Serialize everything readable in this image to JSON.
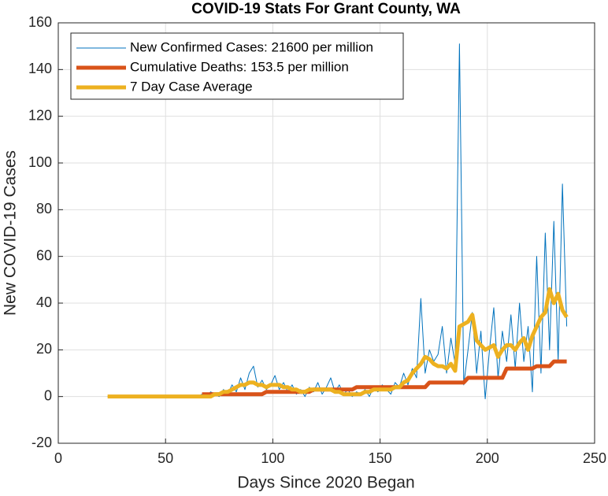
{
  "chart_data": {
    "type": "line",
    "title": "COVID-19 Stats For Grant County, WA",
    "x_label": "Days Since 2020 Began",
    "y_label": "New COVID-19 Cases",
    "x": [
      23,
      25,
      27,
      29,
      31,
      33,
      35,
      37,
      39,
      41,
      43,
      45,
      47,
      49,
      51,
      53,
      55,
      57,
      59,
      61,
      63,
      65,
      67,
      69,
      71,
      73,
      75,
      77,
      79,
      81,
      83,
      85,
      87,
      89,
      91,
      93,
      95,
      97,
      99,
      101,
      103,
      105,
      107,
      109,
      111,
      113,
      115,
      117,
      119,
      121,
      123,
      125,
      127,
      129,
      131,
      133,
      135,
      137,
      139,
      141,
      143,
      145,
      147,
      149,
      151,
      153,
      155,
      157,
      159,
      161,
      163,
      165,
      167,
      169,
      171,
      173,
      175,
      177,
      179,
      181,
      183,
      185,
      187,
      189,
      191,
      193,
      195,
      197,
      199,
      201,
      203,
      205,
      207,
      209,
      211,
      213,
      215,
      217,
      219,
      221,
      223,
      225,
      227,
      229,
      231,
      233,
      235,
      237
    ],
    "series": [
      {
        "name": "New Confirmed Cases: 21600 per million",
        "color": "#0072bd",
        "values": [
          0,
          0,
          0,
          0,
          0,
          0,
          0,
          0,
          0,
          0,
          0,
          0,
          0,
          0,
          0,
          0,
          0,
          0,
          0,
          0,
          0,
          0,
          1,
          0,
          2,
          1,
          0,
          3,
          1,
          5,
          2,
          8,
          3,
          10,
          13,
          4,
          7,
          3,
          5,
          9,
          3,
          6,
          2,
          5,
          1,
          3,
          0,
          4,
          2,
          6,
          1,
          4,
          8,
          2,
          5,
          1,
          3,
          0,
          2,
          1,
          3,
          0,
          4,
          2,
          5,
          3,
          1,
          6,
          4,
          10,
          5,
          12,
          8,
          42,
          10,
          20,
          15,
          18,
          30,
          10,
          25,
          14,
          151,
          5,
          20,
          36,
          10,
          28,
          -1,
          20,
          38,
          8,
          28,
          15,
          35,
          12,
          40,
          15,
          30,
          2,
          60,
          10,
          70,
          20,
          75,
          15,
          91,
          30
        ]
      },
      {
        "name": "Cumulative Deaths: 153.5 per million",
        "color": "#d95319",
        "values": [
          null,
          null,
          null,
          null,
          null,
          null,
          null,
          null,
          null,
          null,
          null,
          null,
          null,
          null,
          null,
          null,
          null,
          null,
          null,
          null,
          null,
          null,
          1,
          1,
          1,
          1,
          1,
          1,
          1,
          1,
          1,
          1,
          1,
          1,
          1,
          1,
          1,
          2,
          2,
          2,
          2,
          2,
          2,
          2,
          2,
          2,
          2,
          2,
          3,
          3,
          3,
          3,
          3,
          3,
          3,
          3,
          3,
          3,
          4,
          4,
          4,
          4,
          4,
          4,
          4,
          4,
          4,
          4,
          4,
          4,
          4,
          4,
          4,
          4,
          4,
          6,
          6,
          6,
          6,
          6,
          6,
          6,
          6,
          6,
          8,
          8,
          8,
          8,
          8,
          8,
          8,
          8,
          8,
          12,
          12,
          12,
          12,
          12,
          12,
          12,
          13,
          13,
          13,
          13,
          15,
          15,
          15,
          15
        ]
      },
      {
        "name": "7 Day Case Average",
        "color": "#edb120",
        "values": [
          0,
          0,
          0,
          0,
          0,
          0,
          0,
          0,
          0,
          0,
          0,
          0,
          0,
          0,
          0,
          0,
          0,
          0,
          0,
          0,
          0,
          0,
          0,
          0,
          0,
          1,
          1,
          2,
          2,
          3,
          4,
          5,
          5,
          6,
          6,
          5,
          5,
          4,
          5,
          5,
          5,
          4,
          4,
          3,
          3,
          2,
          2,
          3,
          3,
          3,
          3,
          3,
          3,
          2,
          2,
          1,
          1,
          1,
          1,
          1,
          2,
          2,
          3,
          3,
          3,
          3,
          3,
          4,
          4,
          6,
          7,
          10,
          12,
          14,
          17,
          16,
          14,
          13,
          13,
          12,
          14,
          11,
          30,
          31,
          32,
          35,
          24,
          22,
          20,
          21,
          22,
          17,
          20,
          22,
          22,
          20,
          23,
          25,
          20,
          26,
          30,
          34,
          36,
          46,
          40,
          44,
          37,
          34
        ]
      }
    ],
    "xlim": [
      0,
      250
    ],
    "xticks": [
      0,
      50,
      100,
      150,
      200,
      250
    ],
    "ylim": [
      -20,
      160
    ],
    "yticks": [
      -20,
      0,
      20,
      40,
      60,
      80,
      100,
      120,
      140,
      160
    ],
    "grid": true,
    "legend": "upper left"
  }
}
